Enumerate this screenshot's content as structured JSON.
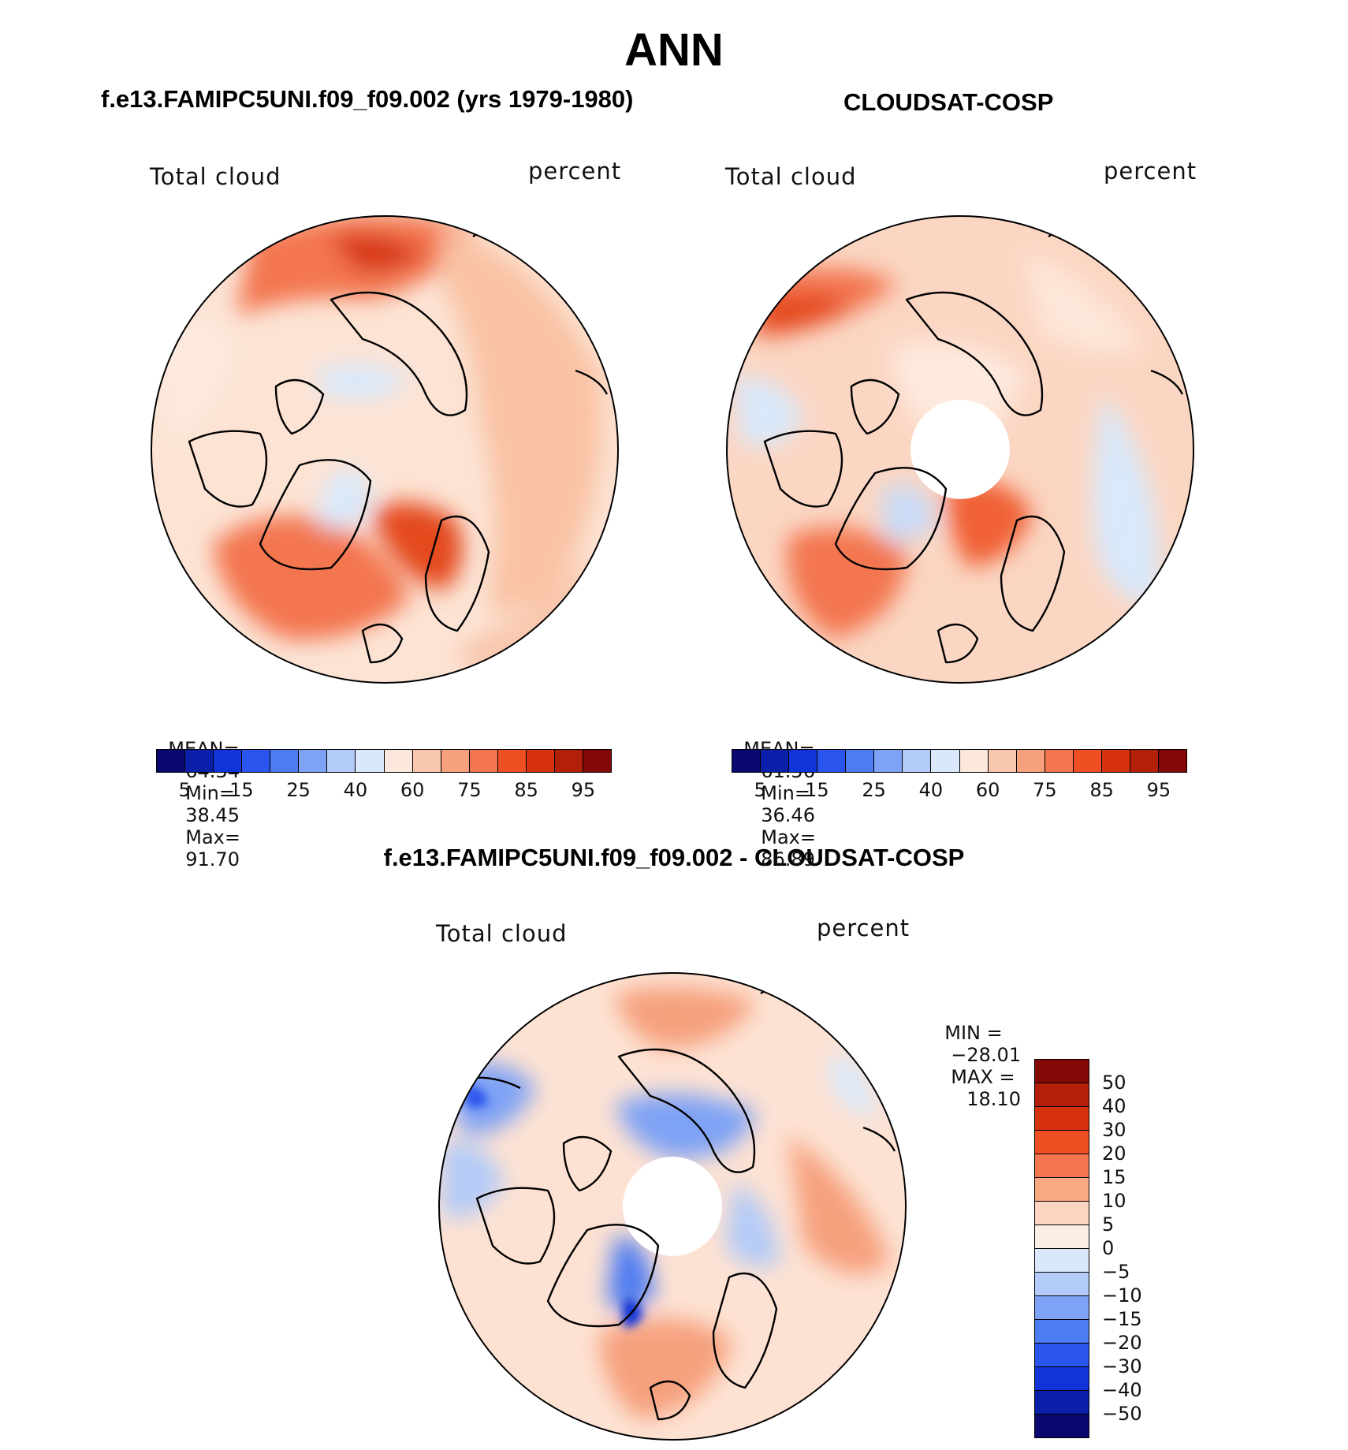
{
  "main_title": "ANN",
  "panels": {
    "left": {
      "title": "f.e13.FAMIPC5UNI.f09_f09.002 (yrs 1979-1980)",
      "var_label": "Total cloud",
      "units": "percent",
      "mean_label": "MEAN=",
      "mean": "64.34",
      "min_label": "Min=",
      "min": "38.45",
      "max_label": "Max=",
      "max": "91.70"
    },
    "right": {
      "title": "CLOUDSAT-COSP",
      "var_label": "Total cloud",
      "units": "percent",
      "mean_label": "MEAN=",
      "mean": "61.56",
      "min_label": "Min=",
      "min": "36.46",
      "max_label": "Max=",
      "max": "86.89"
    },
    "diff": {
      "title": "f.e13.FAMIPC5UNI.f09_f09.002 - CLOUDSAT-COSP",
      "var_label": "Total cloud",
      "units": "percent",
      "min_label": "MIN =",
      "min": "−28.01",
      "max_label": "MAX =",
      "max": "18.10"
    }
  },
  "abs_colorbar": {
    "colors": [
      "#08086e",
      "#0a1faa",
      "#1034d8",
      "#2a54ee",
      "#4d7bf2",
      "#7ea2f5",
      "#b3cbf8",
      "#d9e9fb",
      "#fce7dc",
      "#f9c7ae",
      "#f6a07d",
      "#f3764f",
      "#ef4f22",
      "#d6320e",
      "#b3200a",
      "#830808"
    ],
    "ticks": [
      "5",
      "15",
      "25",
      "40",
      "60",
      "75",
      "85",
      "95"
    ]
  },
  "diff_colorbar": {
    "colors": [
      "#830808",
      "#b3200a",
      "#d6320e",
      "#ef4f22",
      "#f3764f",
      "#f9a981",
      "#fcd6c3",
      "#fdeee5",
      "#d9e9fb",
      "#b3cbf8",
      "#7ea2f5",
      "#4d7bf2",
      "#2a54ee",
      "#1034d8",
      "#0a1faa",
      "#08086e"
    ],
    "ticks": [
      "50",
      "40",
      "30",
      "20",
      "15",
      "10",
      "5",
      "0",
      "−5",
      "−10",
      "−15",
      "−20",
      "−30",
      "−40",
      "−50"
    ]
  },
  "chart_data": [
    {
      "type": "heatmap",
      "title": "f.e13.FAMIPC5UNI.f09_f09.002 (yrs 1979-1980)",
      "projection": "north-polar-stereographic",
      "variable": "Total cloud",
      "units": "percent",
      "mean": 64.34,
      "min": 38.45,
      "max": 91.7,
      "levels": [
        5,
        10,
        15,
        20,
        25,
        30,
        40,
        50,
        60,
        70,
        75,
        80,
        85,
        90,
        95
      ]
    },
    {
      "type": "heatmap",
      "title": "CLOUDSAT-COSP",
      "projection": "north-polar-stereographic",
      "variable": "Total cloud",
      "units": "percent",
      "mean": 61.56,
      "min": 36.46,
      "max": 86.89,
      "levels": [
        5,
        10,
        15,
        20,
        25,
        30,
        40,
        50,
        60,
        70,
        75,
        80,
        85,
        90,
        95
      ]
    },
    {
      "type": "heatmap",
      "title": "f.e13.FAMIPC5UNI.f09_f09.002 - CLOUDSAT-COSP",
      "projection": "north-polar-stereographic",
      "variable": "Total cloud",
      "units": "percent",
      "min": -28.01,
      "max": 18.1,
      "levels": [
        -50,
        -40,
        -30,
        -20,
        -15,
        -10,
        -5,
        0,
        5,
        10,
        15,
        20,
        30,
        40,
        50
      ]
    }
  ]
}
